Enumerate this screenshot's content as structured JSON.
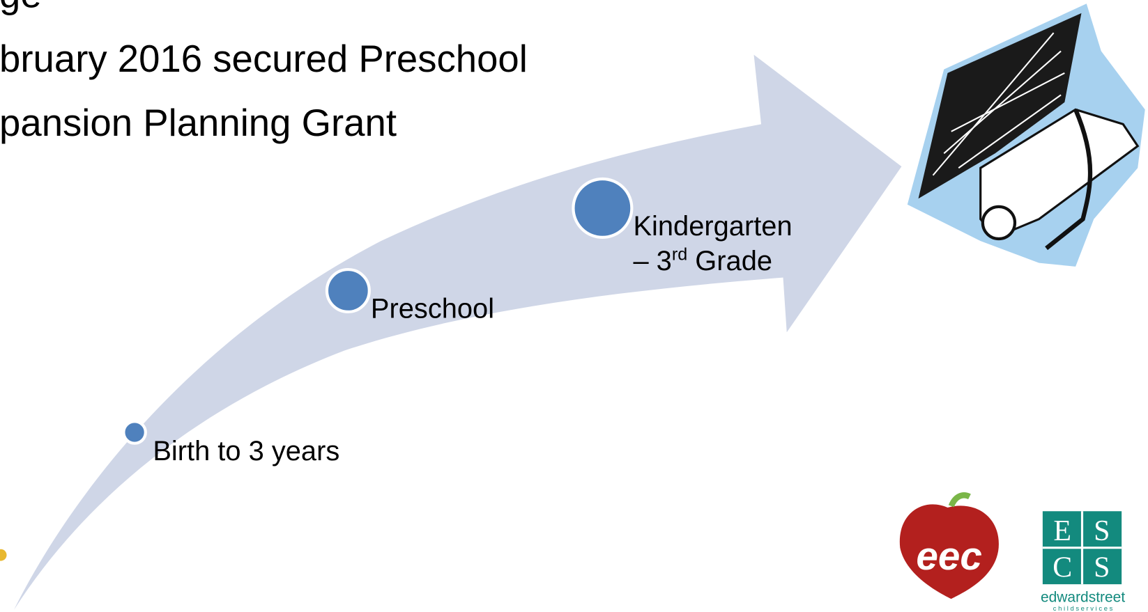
{
  "slide": {
    "bullets": [
      "ge",
      "bruary 2016 secured Preschool",
      "pansion Planning Grant"
    ],
    "milestones": [
      {
        "label": "Birth to 3 years"
      },
      {
        "label": "Preschool"
      },
      {
        "label_line1": "Kindergarten",
        "label_line2_start": "– 3",
        "label_line2_sup": "rd",
        "label_line2_end": " Grade"
      }
    ],
    "logos": {
      "eec": "eec",
      "escs_letters": [
        "E",
        "S",
        "C",
        "S"
      ],
      "escs_name": "edwardstreet",
      "escs_sub": "c h i l d s e r v i c e s"
    }
  }
}
